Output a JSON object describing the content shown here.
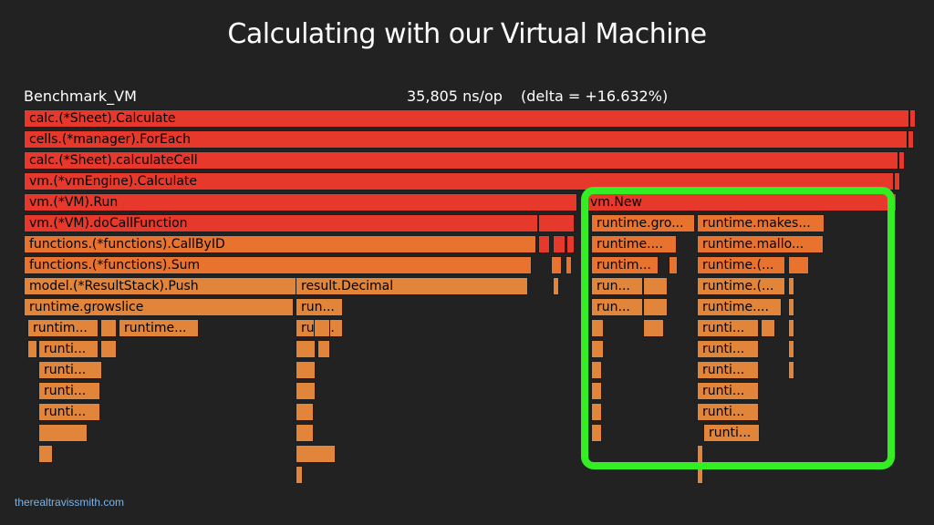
{
  "slide": {
    "title": "Calculating with our Virtual Machine",
    "benchmark_name": "Benchmark_VM",
    "ns_per_op": "35,805 ns/op",
    "delta": "(delta = +16.632%)",
    "footer": "therealtravissmith.com"
  },
  "colors": {
    "background": "#222222",
    "highlight": "#33ee22",
    "hot": "#e6392b",
    "warm": "#e8732f",
    "mild": "#e0853a"
  },
  "flame": [
    {
      "label": "calc.(*Sheet).Calculate"
    },
    {
      "label": "cells.(*manager).ForEach"
    },
    {
      "label": "calc.(*Sheet).calculateCell"
    },
    {
      "label": "vm.(*vmEngine).Calculate"
    },
    {
      "label": "vm.(*VM).Run"
    },
    {
      "label": "vm.New"
    },
    {
      "label": "vm.(*VM).doCallFunction"
    },
    {
      "label": "runtime.gro..."
    },
    {
      "label": "runtime.makes..."
    },
    {
      "label": "functions.(*functions).CallByID"
    },
    {
      "label": "runtime...."
    },
    {
      "label": "runtime.mallo..."
    },
    {
      "label": "functions.(*functions).Sum"
    },
    {
      "label": "runtim..."
    },
    {
      "label": "runtime.(..."
    },
    {
      "label": "model.(*ResultStack).Push"
    },
    {
      "label": "result.Decimal"
    },
    {
      "label": "run..."
    },
    {
      "label": "runtime.(..."
    },
    {
      "label": "runtime.growslice"
    },
    {
      "label": "run..."
    },
    {
      "label": "run..."
    },
    {
      "label": "runtime...."
    },
    {
      "label": "runtim..."
    },
    {
      "label": "runtime..."
    },
    {
      "label": "run..."
    },
    {
      "label": "runti..."
    },
    {
      "label": "runti..."
    },
    {
      "label": "runti..."
    },
    {
      "label": "runti..."
    },
    {
      "label": "runti..."
    },
    {
      "label": "runti..."
    },
    {
      "label": "runti..."
    },
    {
      "label": "runti..."
    },
    {
      "label": "runti..."
    },
    {
      "label": "runti..."
    }
  ]
}
